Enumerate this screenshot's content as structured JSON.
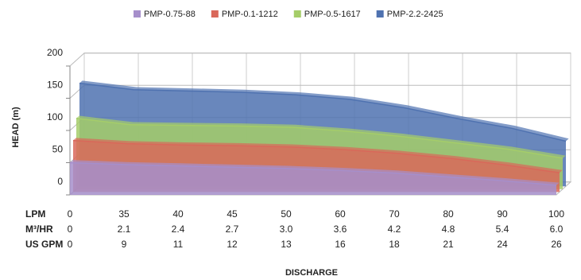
{
  "chart_data": {
    "type": "area3d",
    "y_label": "HEAD (m)",
    "x_label": "DISCHARGE",
    "categories_name": "LPM",
    "categories": [
      "0",
      "35",
      "40",
      "45",
      "50",
      "60",
      "70",
      "80",
      "90",
      "100"
    ],
    "alt_rows": [
      {
        "name": "M³/HR",
        "labels": [
          "0",
          "2.1",
          "2.4",
          "2.7",
          "3.0",
          "3.6",
          "4.2",
          "4.8",
          "5.4",
          "6.0"
        ]
      },
      {
        "name": "US GPM",
        "labels": [
          "0",
          "9",
          "11",
          "12",
          "13",
          "16",
          "18",
          "21",
          "24",
          "26"
        ]
      }
    ],
    "series": [
      {
        "name": "PMP-0.75-88",
        "color": "#a68fcb",
        "values": [
          50,
          47,
          45,
          43,
          41,
          38,
          34,
          28,
          22,
          15
        ]
      },
      {
        "name": "PMP-0.1-1212",
        "color": "#d9685a",
        "values": [
          80,
          75,
          73,
          72,
          70,
          66,
          60,
          52,
          42,
          30
        ]
      },
      {
        "name": "PMP-0.5-1617",
        "color": "#a5cd69",
        "values": [
          110,
          100,
          99,
          98,
          96,
          90,
          82,
          72,
          62,
          48
        ]
      },
      {
        "name": "PMP-2.2-2425",
        "color": "#4f72b0",
        "values": [
          160,
          150,
          148,
          146,
          142,
          135,
          122,
          105,
          90,
          70
        ]
      }
    ],
    "ylim": [
      0,
      200
    ],
    "yticks": [
      0,
      50,
      100,
      150,
      200
    ],
    "grid": true,
    "legend": "top"
  }
}
